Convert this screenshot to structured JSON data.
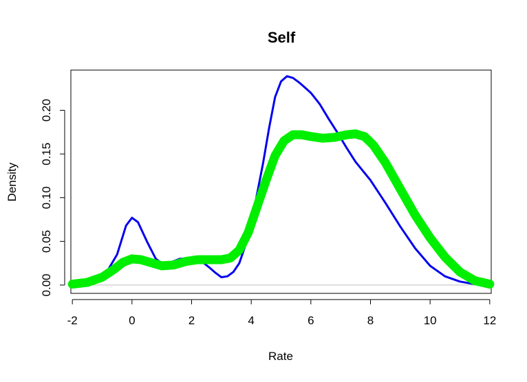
{
  "chart_data": {
    "type": "line",
    "title": "Self",
    "xlabel": "Rate",
    "ylabel": "Density",
    "xlim": [
      -2.05,
      12.05
    ],
    "ylim": [
      -0.0095,
      0.246
    ],
    "x_ticks": [
      "-2",
      "0",
      "2",
      "4",
      "6",
      "8",
      "10",
      "12"
    ],
    "y_ticks": [
      "0.00",
      "0.05",
      "0.10",
      "0.15",
      "0.20"
    ],
    "x_tick_values": [
      -2,
      0,
      2,
      4,
      6,
      8,
      10,
      12
    ],
    "y_tick_values": [
      0,
      0.05,
      0.1,
      0.15,
      0.2
    ],
    "baseline": 0,
    "grid": false,
    "series": [
      {
        "color": "#0000ee",
        "points": [
          [
            -2.0,
            0.0
          ],
          [
            -1.5,
            0.001
          ],
          [
            -1.0,
            0.006
          ],
          [
            -0.5,
            0.035
          ],
          [
            -0.2,
            0.068
          ],
          [
            0.0,
            0.077
          ],
          [
            0.2,
            0.072
          ],
          [
            0.5,
            0.05
          ],
          [
            0.8,
            0.03
          ],
          [
            1.0,
            0.025
          ],
          [
            1.3,
            0.026
          ],
          [
            1.6,
            0.03
          ],
          [
            2.0,
            0.031
          ],
          [
            2.3,
            0.028
          ],
          [
            2.6,
            0.02
          ],
          [
            2.8,
            0.014
          ],
          [
            3.0,
            0.009
          ],
          [
            3.2,
            0.01
          ],
          [
            3.4,
            0.015
          ],
          [
            3.6,
            0.025
          ],
          [
            3.8,
            0.045
          ],
          [
            4.0,
            0.07
          ],
          [
            4.2,
            0.105
          ],
          [
            4.4,
            0.14
          ],
          [
            4.6,
            0.18
          ],
          [
            4.8,
            0.215
          ],
          [
            5.0,
            0.233
          ],
          [
            5.2,
            0.239
          ],
          [
            5.4,
            0.237
          ],
          [
            5.6,
            0.232
          ],
          [
            5.8,
            0.226
          ],
          [
            6.0,
            0.22
          ],
          [
            6.3,
            0.207
          ],
          [
            6.6,
            0.19
          ],
          [
            6.9,
            0.174
          ],
          [
            7.2,
            0.157
          ],
          [
            7.5,
            0.141
          ],
          [
            8.0,
            0.12
          ],
          [
            8.5,
            0.094
          ],
          [
            9.0,
            0.067
          ],
          [
            9.5,
            0.042
          ],
          [
            10.0,
            0.022
          ],
          [
            10.5,
            0.01
          ],
          [
            11.0,
            0.004
          ],
          [
            11.5,
            0.001
          ],
          [
            12.0,
            0.0
          ]
        ]
      },
      {
        "color": "#00ee00",
        "points": [
          [
            -2.0,
            0.001
          ],
          [
            -1.5,
            0.003
          ],
          [
            -1.0,
            0.009
          ],
          [
            -0.6,
            0.018
          ],
          [
            -0.3,
            0.026
          ],
          [
            0.0,
            0.03
          ],
          [
            0.3,
            0.029
          ],
          [
            0.6,
            0.026
          ],
          [
            1.0,
            0.022
          ],
          [
            1.4,
            0.023
          ],
          [
            1.8,
            0.027
          ],
          [
            2.2,
            0.029
          ],
          [
            2.6,
            0.029
          ],
          [
            3.0,
            0.029
          ],
          [
            3.3,
            0.031
          ],
          [
            3.6,
            0.04
          ],
          [
            3.9,
            0.06
          ],
          [
            4.2,
            0.09
          ],
          [
            4.5,
            0.12
          ],
          [
            4.8,
            0.148
          ],
          [
            5.1,
            0.165
          ],
          [
            5.4,
            0.172
          ],
          [
            5.7,
            0.172
          ],
          [
            6.0,
            0.17
          ],
          [
            6.4,
            0.168
          ],
          [
            6.8,
            0.169
          ],
          [
            7.2,
            0.172
          ],
          [
            7.5,
            0.173
          ],
          [
            7.8,
            0.17
          ],
          [
            8.1,
            0.16
          ],
          [
            8.5,
            0.14
          ],
          [
            9.0,
            0.11
          ],
          [
            9.5,
            0.08
          ],
          [
            10.0,
            0.054
          ],
          [
            10.5,
            0.032
          ],
          [
            11.0,
            0.015
          ],
          [
            11.5,
            0.005
          ],
          [
            12.0,
            0.001
          ]
        ]
      }
    ]
  }
}
